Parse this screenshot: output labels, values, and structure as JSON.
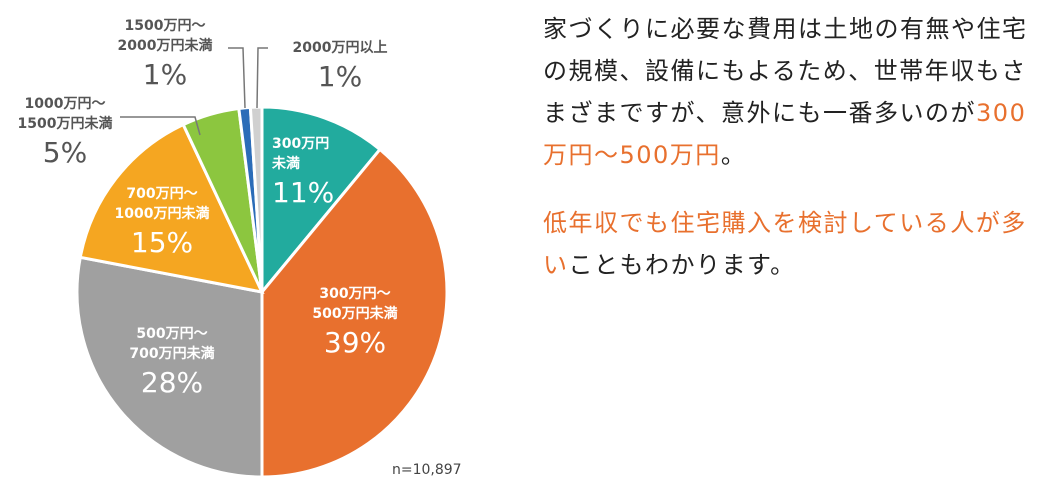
{
  "chart_data": {
    "type": "pie",
    "n_label": "n=10,897",
    "slices": [
      {
        "label_lines": [
          "300万円",
          "未満"
        ],
        "pct_text": "11%",
        "value": 11,
        "color": "#22ab9e"
      },
      {
        "label_lines": [
          "300万円～",
          "500万円未満"
        ],
        "pct_text": "39%",
        "value": 39,
        "color": "#e8702e"
      },
      {
        "label_lines": [
          "500万円～",
          "700万円未満"
        ],
        "pct_text": "28%",
        "value": 28,
        "color": "#a0a0a0"
      },
      {
        "label_lines": [
          "700万円～",
          "1000万円未満"
        ],
        "pct_text": "15%",
        "value": 15,
        "color": "#f5a621"
      },
      {
        "label_lines": [
          "1000万円～",
          "1500万円未満"
        ],
        "pct_text": "5%",
        "value": 5,
        "color": "#8cc63f"
      },
      {
        "label_lines": [
          "1500万円～",
          "2000万円未満"
        ],
        "pct_text": "1%",
        "value": 1,
        "color": "#2b6cb8"
      },
      {
        "label_lines": [
          "2000万円以上"
        ],
        "pct_text": "1%",
        "value": 1,
        "color": "#d0d0d0"
      }
    ]
  },
  "description": {
    "para1": [
      {
        "text": "家づくりに必要な費用は土地の有無や住宅の規模、設備にもよるため、世帯年収もさまざまですが、意外にも一番多いのが",
        "highlight": false
      },
      {
        "text": "300万円～500万円",
        "highlight": true
      },
      {
        "text": "。",
        "highlight": false
      }
    ],
    "para2": [
      {
        "text": "低年収でも住宅購入を検討している人が多い",
        "highlight": true
      },
      {
        "text": "こともわかります。",
        "highlight": false
      }
    ]
  },
  "colors": {
    "highlight": "#e8702e",
    "text": "#222222"
  }
}
